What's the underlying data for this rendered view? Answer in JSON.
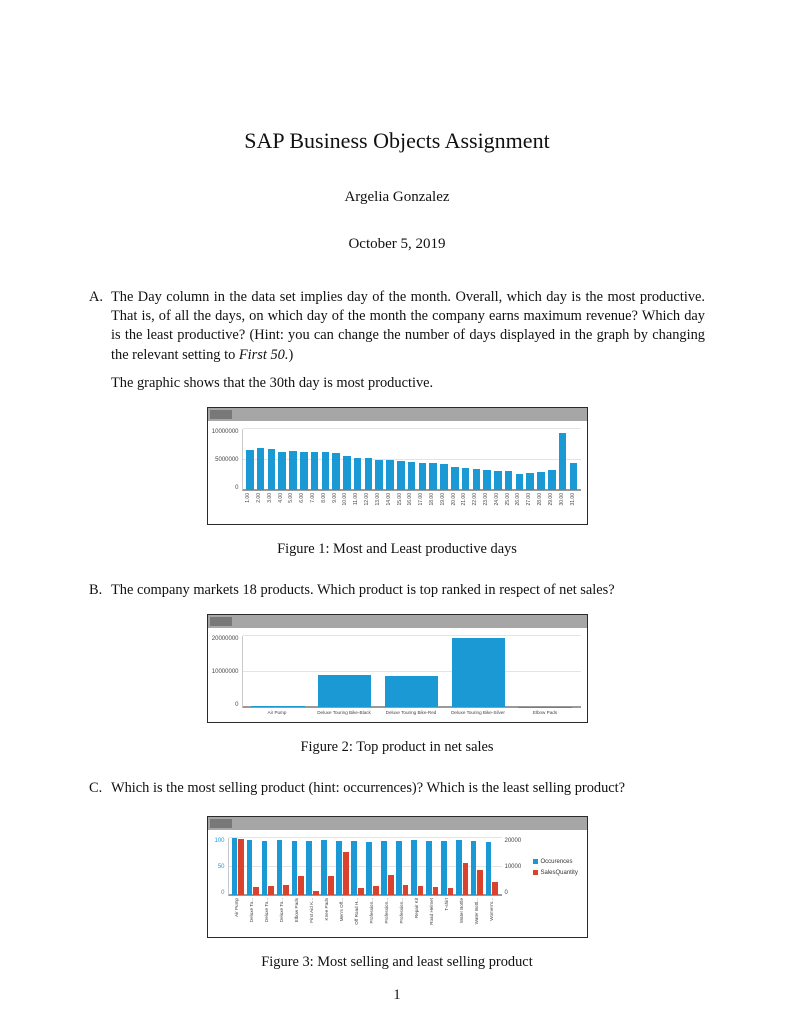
{
  "doc": {
    "title": "SAP Business Objects Assignment",
    "author": "Argelia Gonzalez",
    "date": "October 5, 2019",
    "page_number": "1"
  },
  "sections": {
    "a": {
      "label": "A.",
      "text_main": "The Day column in the data set implies day of the month. Overall, which day is the most productive. That is, of all the days, on which day of the month the company earns maximum revenue? Which day is the least productive? (Hint: you can change the number of days displayed in the graph by changing the relevant setting to ",
      "text_italic": "First 50.",
      "text_close": ")",
      "followup": "The graphic shows that the 30th day is most productive."
    },
    "b": {
      "label": "B.",
      "text": "The company markets 18 products. Which product is top ranked in respect of net sales?"
    },
    "c": {
      "label": "C.",
      "text": "Which is the most selling product (hint: occurrences)? Which is the least selling product?"
    }
  },
  "figures": {
    "fig1": {
      "caption": "Figure 1: Most and Least productive days"
    },
    "fig2": {
      "caption": "Figure 2: Top product in net sales"
    },
    "fig3": {
      "caption": "Figure 3: Most selling and least selling product"
    }
  },
  "chart_data": [
    {
      "id": "fig1",
      "type": "bar",
      "title": "",
      "categories": [
        "1.00",
        "2.00",
        "3.00",
        "4.00",
        "5.00",
        "6.00",
        "7.00",
        "8.00",
        "9.00",
        "10.00",
        "11.00",
        "12.00",
        "13.00",
        "14.00",
        "15.00",
        "16.00",
        "17.00",
        "18.00",
        "19.00",
        "20.00",
        "21.00",
        "22.00",
        "23.00",
        "24.00",
        "25.00",
        "26.00",
        "27.00",
        "28.00",
        "29.00",
        "30.00",
        "31.00"
      ],
      "values": [
        6500000,
        6900000,
        6800000,
        6300000,
        6400000,
        6300000,
        6200000,
        6300000,
        6000000,
        5500000,
        5300000,
        5200000,
        5000000,
        4900000,
        4800000,
        4600000,
        4400000,
        4500000,
        4300000,
        3800000,
        3600000,
        3500000,
        3300000,
        3200000,
        3100000,
        2700000,
        2800000,
        3000000,
        3300000,
        9400000,
        4400000
      ],
      "xlabel": "",
      "ylabel": "",
      "ylim": [
        0,
        10000000
      ],
      "yticks": [
        0,
        5000000,
        10000000
      ],
      "bar_color": "#1b99d5",
      "rotate_labels": true,
      "grid": true
    },
    {
      "id": "fig2",
      "type": "bar",
      "title": "",
      "categories": [
        "Air Pump",
        "Deluxe Touring Bike-Black",
        "Deluxe Touring Bike-Red",
        "Deluxe Touring Bike-Silver",
        "Elbow Pads"
      ],
      "values": [
        250000,
        9200000,
        8700000,
        19600000,
        180000
      ],
      "xlabel": "",
      "ylabel": "",
      "ylim": [
        0,
        20000000
      ],
      "yticks": [
        0,
        10000000,
        20000000
      ],
      "bar_color": "#1b99d5",
      "rotate_labels": false,
      "grid": true
    },
    {
      "id": "fig3",
      "type": "bar",
      "title": "",
      "categories": [
        "Air Pump",
        "Deluxe To...",
        "Deluxe To...",
        "Deluxe To...",
        "Elbow Pads",
        "First Aid K...",
        "Knee Pads",
        "Men's Off...",
        "Off Road H...",
        "Profession...",
        "Profession...",
        "Profession...",
        "Repair Kit",
        "Road Helmet",
        "T-shirt",
        "Water Bottle",
        "Water Bottl...",
        "Women's..."
      ],
      "series": [
        {
          "name": "Occurences",
          "axis": "left",
          "color": "#1b99d5",
          "values": [
            100,
            97,
            96,
            98,
            95,
            96,
            97,
            95,
            96,
            94,
            95,
            96,
            97,
            95,
            96,
            97,
            95,
            94
          ]
        },
        {
          "name": "SalesQuantity",
          "axis": "right",
          "color": "#d9432e",
          "values": [
            19800,
            3100,
            3300,
            3500,
            6900,
            1400,
            6700,
            15200,
            2500,
            3400,
            7100,
            3700,
            3200,
            2900,
            2600,
            11500,
            9000,
            4800
          ]
        }
      ],
      "left_ylim": [
        0,
        100
      ],
      "left_yticks": [
        0,
        50,
        100
      ],
      "right_ylim": [
        0,
        20000
      ],
      "right_yticks": [
        0,
        10000,
        20000
      ],
      "rotate_labels": true,
      "legend": true,
      "legend_position": "right",
      "grid": true
    }
  ]
}
